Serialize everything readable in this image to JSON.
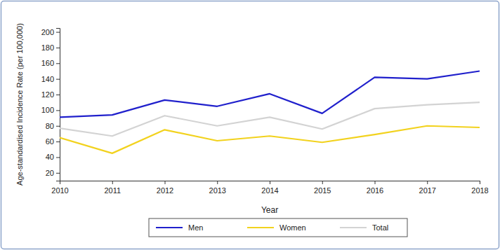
{
  "chart_data": {
    "type": "line",
    "x_label": "Year",
    "y_label": "Age-standardised Incidence Rate (per 100,000)",
    "x": [
      2010,
      2011,
      2012,
      2013,
      2014,
      2015,
      2016,
      2017,
      2018
    ],
    "series": [
      {
        "name": "Men",
        "color": "#2020cc",
        "values": [
          91,
          94,
          113,
          105,
          121,
          96,
          142,
          140,
          150
        ]
      },
      {
        "name": "Women",
        "color": "#f2d21e",
        "values": [
          65,
          45,
          75,
          61,
          67,
          59,
          69,
          80,
          78
        ]
      },
      {
        "name": "Total",
        "color": "#d3d3d3",
        "values": [
          77,
          67,
          93,
          80,
          91,
          76,
          102,
          107,
          110
        ]
      }
    ],
    "xlim": [
      2010,
      2018
    ],
    "xticks": [
      2010,
      2011,
      2012,
      2013,
      2014,
      2015,
      2016,
      2017,
      2018
    ],
    "ylim": [
      10,
      205
    ],
    "yticks": [
      20,
      40,
      60,
      80,
      100,
      120,
      140,
      160,
      180,
      200
    ],
    "grid": false,
    "legend": "bottom"
  }
}
